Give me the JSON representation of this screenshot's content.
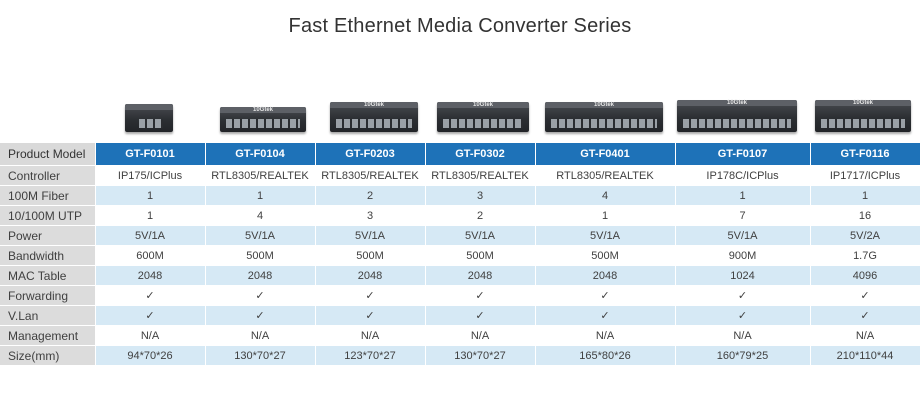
{
  "title": "Fast Ethernet Media Converter Series",
  "header": {
    "label": "Product Model",
    "models": [
      "GT-F0101",
      "GT-F0104",
      "GT-F0203",
      "GT-F0302",
      "GT-F0401",
      "GT-F0107",
      "GT-F0116"
    ]
  },
  "device_logo": "10Gtek",
  "rows": [
    {
      "label": "Controller",
      "values": [
        "IP175/ICPlus",
        "RTL8305/REALTEK",
        "RTL8305/REALTEK",
        "RTL8305/REALTEK",
        "RTL8305/REALTEK",
        "IP178C/ICPlus",
        "IP1717/ICPlus"
      ]
    },
    {
      "label": "100M Fiber",
      "values": [
        "1",
        "1",
        "2",
        "3",
        "4",
        "1",
        "1"
      ]
    },
    {
      "label": "10/100M UTP",
      "values": [
        "1",
        "4",
        "3",
        "2",
        "1",
        "7",
        "16"
      ]
    },
    {
      "label": "Power",
      "values": [
        "5V/1A",
        "5V/1A",
        "5V/1A",
        "5V/1A",
        "5V/1A",
        "5V/1A",
        "5V/2A"
      ]
    },
    {
      "label": "Bandwidth",
      "values": [
        "600M",
        "500M",
        "500M",
        "500M",
        "500M",
        "900M",
        "1.7G"
      ]
    },
    {
      "label": "MAC Table",
      "values": [
        "2048",
        "2048",
        "2048",
        "2048",
        "2048",
        "1024",
        "4096"
      ]
    },
    {
      "label": "Forwarding",
      "values": [
        "✓",
        "✓",
        "✓",
        "✓",
        "✓",
        "✓",
        "✓"
      ]
    },
    {
      "label": "V.Lan",
      "values": [
        "✓",
        "✓",
        "✓",
        "✓",
        "✓",
        "✓",
        "✓"
      ]
    },
    {
      "label": "Management",
      "values": [
        "N/A",
        "N/A",
        "N/A",
        "N/A",
        "N/A",
        "N/A",
        "N/A"
      ]
    },
    {
      "label": "Size(mm)",
      "values": [
        "94*70*26",
        "130*70*27",
        "123*70*27",
        "130*70*27",
        "165*80*26",
        "160*79*25",
        "210*110*44"
      ]
    }
  ]
}
